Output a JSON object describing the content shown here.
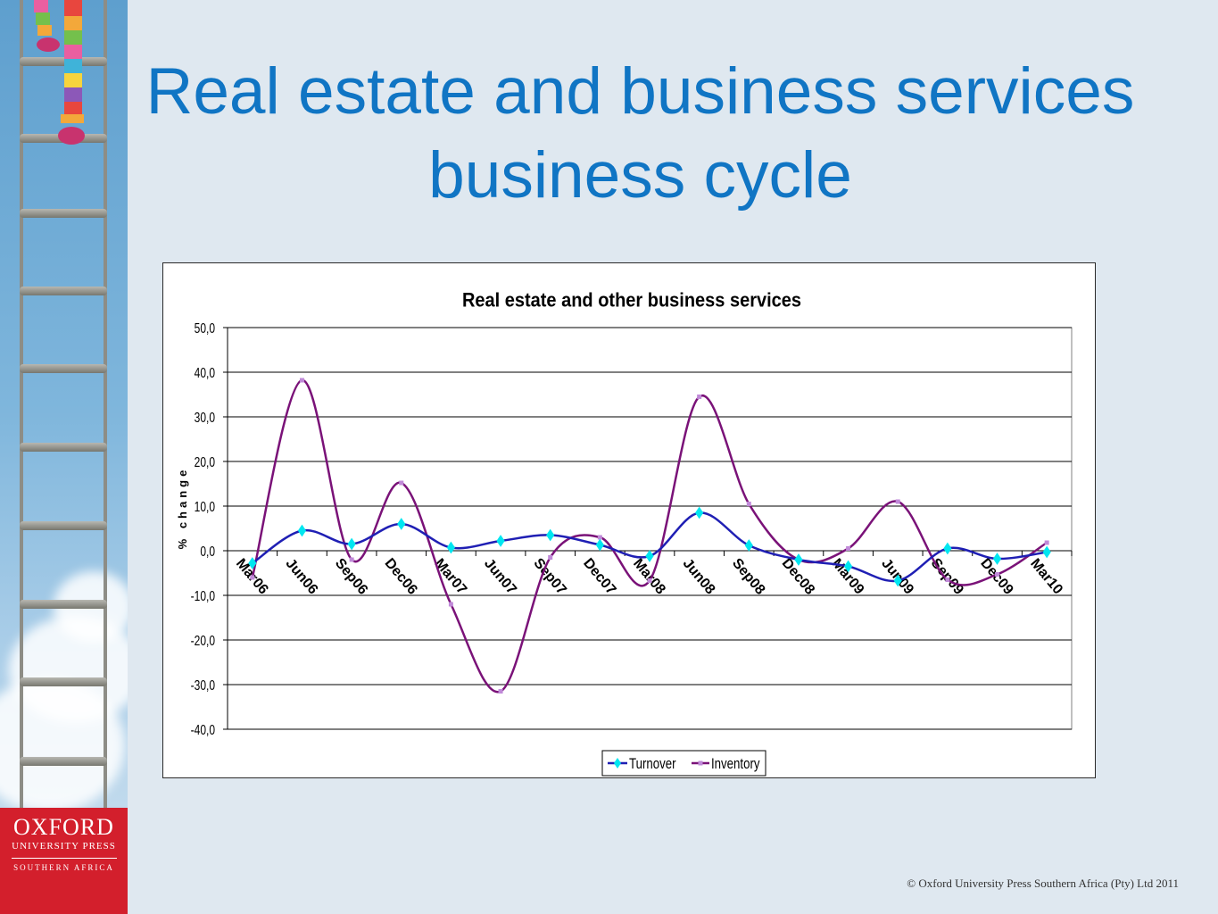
{
  "slide": {
    "title": "Real estate and business services business cycle",
    "copyright": "© Oxford University Press Southern Africa (Pty) Ltd 2011"
  },
  "logo": {
    "line1": "OXFORD",
    "line2": "UNIVERSITY PRESS",
    "line3": "SOUTHERN AFRICA"
  },
  "colors": {
    "title": "#1075c4",
    "logo_bg": "#d31f2c",
    "turnover_line": "#1f1fb4",
    "turnover_marker": "#00e6f0",
    "inventory_line": "#7a1278",
    "inventory_marker": "#c08ad8"
  },
  "chart_data": {
    "type": "line",
    "title": "Real estate and other business services",
    "ylabel": "% change",
    "xlabel": "",
    "ylim": [
      -40,
      50
    ],
    "yticks": [
      50,
      40,
      30,
      20,
      10,
      0,
      -10,
      -20,
      -30,
      -40
    ],
    "ytick_labels": [
      "50,0",
      "40,0",
      "30,0",
      "20,0",
      "10,0",
      "0,0",
      "-10,0",
      "-20,0",
      "-30,0",
      "-40,0"
    ],
    "grid": true,
    "legend_position": "bottom",
    "categories": [
      "Mar06",
      "Jun06",
      "Sep06",
      "Dec06",
      "Mar07",
      "Jun07",
      "Sep07",
      "Dec07",
      "Mar08",
      "Jun08",
      "Sep08",
      "Dec08",
      "Mar09",
      "Jun09",
      "Sep09",
      "Dec09",
      "Mar10"
    ],
    "series": [
      {
        "name": "Turnover",
        "marker": "diamond",
        "values": [
          -2.8,
          4.5,
          1.5,
          6.0,
          0.7,
          2.2,
          3.5,
          1.3,
          -1.2,
          8.5,
          1.2,
          -2.0,
          -3.5,
          -6.7,
          0.5,
          -1.8,
          -0.3
        ]
      },
      {
        "name": "Inventory",
        "marker": "square",
        "values": [
          -6.0,
          38.2,
          -2.0,
          15.2,
          -12.0,
          -31.5,
          -1.5,
          3.0,
          -6.7,
          34.5,
          10.5,
          -2.0,
          0.5,
          11.0,
          -6.5,
          -5.3,
          1.8
        ]
      }
    ]
  }
}
